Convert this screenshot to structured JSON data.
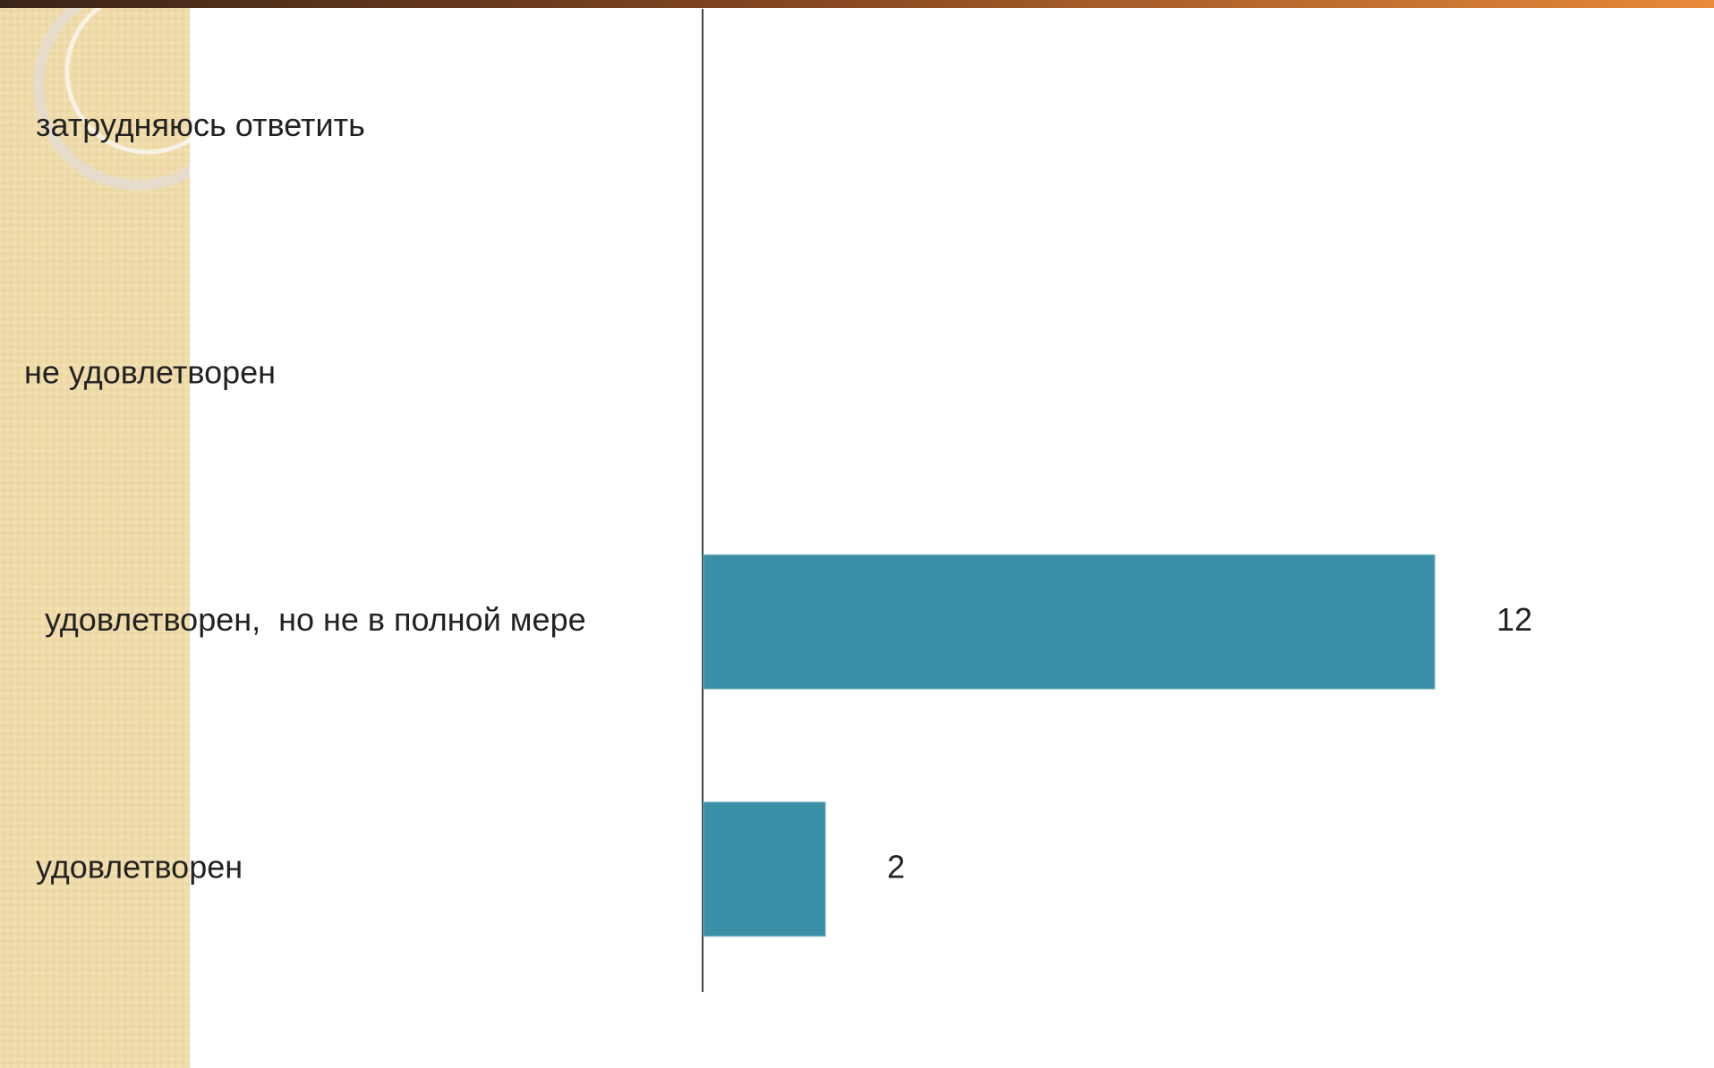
{
  "chart_data": {
    "type": "bar",
    "orientation": "horizontal",
    "categories": [
      "затрудняюсь ответить",
      "не удовлетворен",
      "удовлетворен,  но не в полной мере",
      "удовлетворен"
    ],
    "values": [
      null,
      null,
      12,
      2
    ],
    "color": "#3a8fa6"
  }
}
